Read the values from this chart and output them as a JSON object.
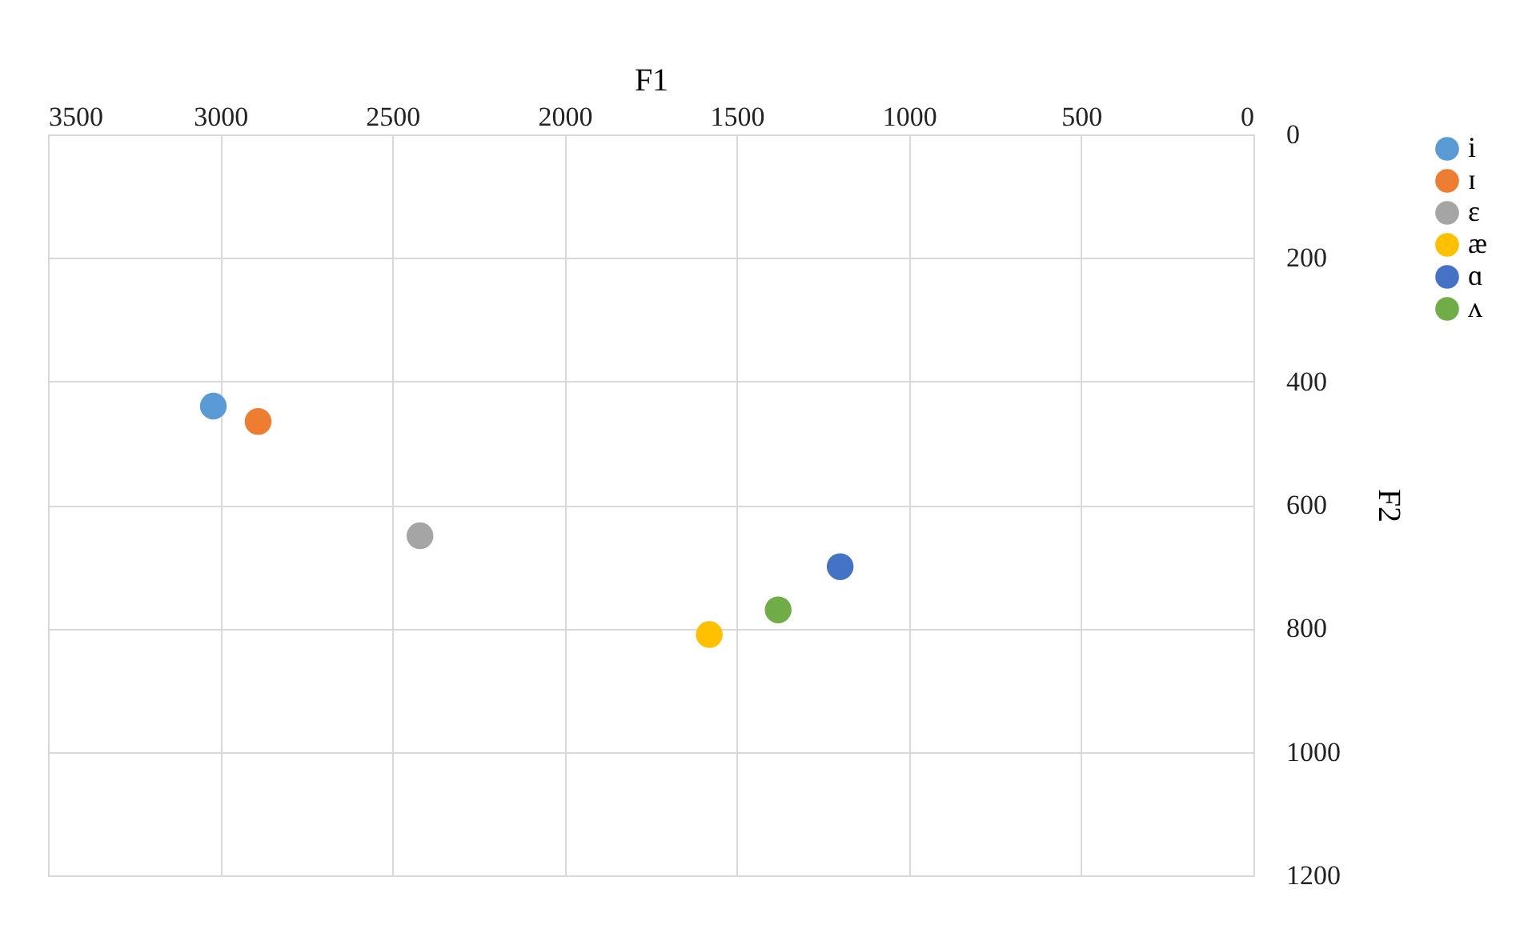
{
  "chart_data": {
    "type": "scatter",
    "xlabel": "F1",
    "ylabel": "F2",
    "xlim": [
      3500,
      0
    ],
    "xticks": [
      3500,
      3000,
      2500,
      2000,
      1500,
      1000,
      500,
      0
    ],
    "ylim": [
      1200,
      0
    ],
    "yticks": [
      0,
      200,
      400,
      600,
      800,
      1000,
      1200
    ],
    "grid": true,
    "legend": "right",
    "marker": "circle",
    "series": [
      {
        "name": "i",
        "color": "#5b9bd5",
        "x": [
          3020
        ],
        "values": [
          440
        ]
      },
      {
        "name": "ɪ",
        "color": "#ed7d31",
        "x": [
          2890
        ],
        "values": [
          465
        ]
      },
      {
        "name": "ɛ",
        "color": "#a5a5a5",
        "x": [
          2420
        ],
        "values": [
          650
        ]
      },
      {
        "name": "æ",
        "color": "#ffc000",
        "x": [
          1580
        ],
        "values": [
          810
        ]
      },
      {
        "name": "ɑ",
        "color": "#4472c4",
        "x": [
          1200
        ],
        "values": [
          700
        ]
      },
      {
        "name": "ʌ",
        "color": "#70ad47",
        "x": [
          1380
        ],
        "values": [
          770
        ]
      }
    ]
  }
}
